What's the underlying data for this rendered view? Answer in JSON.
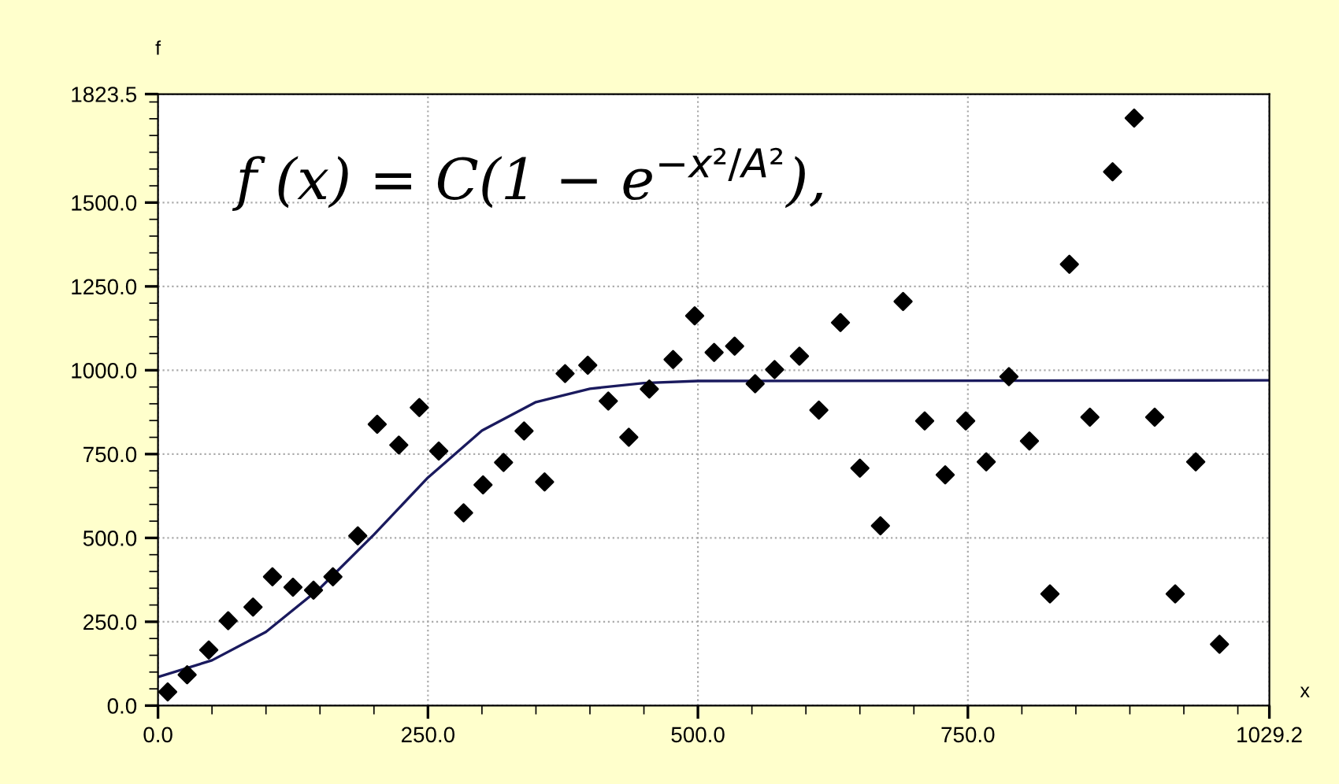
{
  "chart_data": {
    "type": "scatter",
    "xlabel": "x",
    "ylabel": "f",
    "annotations": [
      "f (x) = C(1 − e$^{−x²/A²}$),"
    ],
    "xlim": [
      0,
      1029.2
    ],
    "ylim": [
      0,
      1823.5
    ],
    "xticks": [
      {
        "value": 0,
        "label": "0.0"
      },
      {
        "value": 250,
        "label": "250.0"
      },
      {
        "value": 500,
        "label": "500.0"
      },
      {
        "value": 750,
        "label": "750.0"
      },
      {
        "value": 1029.2,
        "label": "1029.2"
      }
    ],
    "yticks": [
      {
        "value": 0,
        "label": "0.0"
      },
      {
        "value": 250,
        "label": "250.0"
      },
      {
        "value": 500,
        "label": "500.0"
      },
      {
        "value": 750,
        "label": "750.0"
      },
      {
        "value": 1000,
        "label": "1000.0"
      },
      {
        "value": 1250,
        "label": "1250.0"
      },
      {
        "value": 1500,
        "label": "1500.0"
      },
      {
        "value": 1823.5,
        "label": "1823.5"
      }
    ],
    "grid": true,
    "marker": "diamond",
    "series": [
      {
        "color": "#000000",
        "x": [
          9,
          27,
          47,
          65,
          88,
          106,
          125,
          144,
          162,
          185,
          203,
          223,
          242,
          260,
          283,
          301,
          320,
          339,
          358,
          377,
          398,
          417,
          436,
          455,
          477,
          497,
          515,
          534,
          553,
          571,
          594,
          612,
          632,
          650,
          669,
          690,
          710,
          729,
          748,
          767,
          788,
          807,
          826,
          844,
          863,
          884,
          904,
          923,
          942,
          961,
          983
        ],
        "values": [
          41,
          92,
          166,
          253,
          294,
          384,
          353,
          344,
          384,
          506,
          839,
          777,
          889,
          759,
          575,
          658,
          725,
          819,
          667,
          990,
          1015,
          908,
          800,
          944,
          1032,
          1162,
          1053,
          1072,
          960,
          1002,
          1042,
          881,
          1142,
          708,
          536,
          1205,
          849,
          688,
          849,
          727,
          981,
          789,
          333,
          1316,
          860,
          1592,
          1752,
          860,
          333,
          727,
          183
        ]
      },
      {
        "type": "line",
        "color": "#1a1a5e",
        "marker": "none",
        "x": [
          0,
          50,
          100,
          150,
          200,
          250,
          300,
          350,
          400,
          450,
          500,
          1029.2
        ],
        "values": [
          85,
          135,
          220,
          350,
          510,
          680,
          820,
          905,
          945,
          962,
          968,
          970
        ]
      }
    ]
  }
}
